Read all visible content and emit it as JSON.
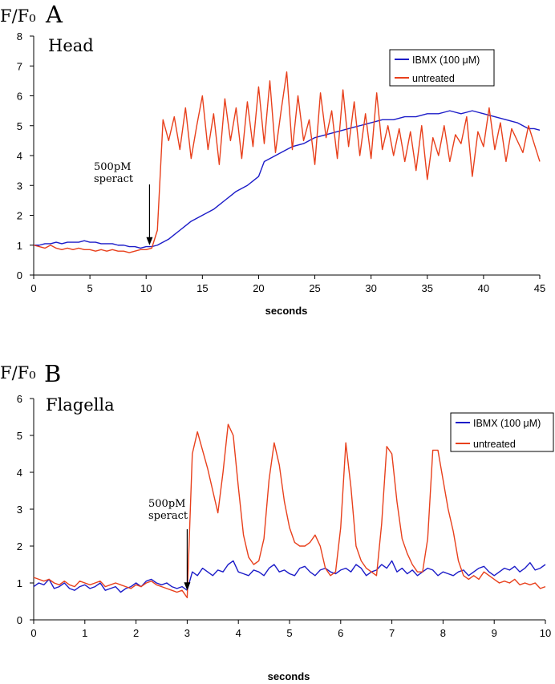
{
  "chart_data": [
    {
      "type": "line",
      "panel": "A",
      "y_label": "F/F₀",
      "region": "Head",
      "x_label": "seconds",
      "annotation": {
        "lines": [
          "500pM",
          "speract"
        ],
        "x": 10.3,
        "y": 1.0
      },
      "legend": "upper right",
      "x": [
        0,
        0.5,
        1,
        1.5,
        2,
        2.5,
        3,
        3.5,
        4,
        4.5,
        5,
        5.5,
        6,
        6.5,
        7,
        7.5,
        8,
        8.5,
        9,
        9.5,
        10,
        10.5,
        11,
        11.5,
        12,
        12.5,
        13,
        13.5,
        14,
        14.5,
        15,
        15.5,
        16,
        16.5,
        17,
        17.5,
        18,
        18.5,
        19,
        19.5,
        20,
        20.5,
        21,
        21.5,
        22,
        22.5,
        23,
        23.5,
        24,
        24.5,
        25,
        25.5,
        26,
        26.5,
        27,
        27.5,
        28,
        28.5,
        29,
        29.5,
        30,
        30.5,
        31,
        31.5,
        32,
        32.5,
        33,
        33.5,
        34,
        34.5,
        35,
        35.5,
        36,
        36.5,
        37,
        37.5,
        38,
        38.5,
        39,
        39.5,
        40,
        40.5,
        41,
        41.5,
        42,
        42.5,
        43,
        43.5,
        44,
        44.5,
        45
      ],
      "series": [
        {
          "name": "IBMX (100 μM)",
          "color": "#1c1cc8",
          "values": [
            1.0,
            1.0,
            1.05,
            1.05,
            1.1,
            1.05,
            1.1,
            1.1,
            1.1,
            1.15,
            1.1,
            1.1,
            1.05,
            1.05,
            1.05,
            1.0,
            1.0,
            0.95,
            0.95,
            0.9,
            0.95,
            0.95,
            1.0,
            1.1,
            1.2,
            1.35,
            1.5,
            1.65,
            1.8,
            1.9,
            2.0,
            2.1,
            2.2,
            2.35,
            2.5,
            2.65,
            2.8,
            2.9,
            3.0,
            3.15,
            3.3,
            3.8,
            3.9,
            4.0,
            4.1,
            4.2,
            4.3,
            4.35,
            4.4,
            4.5,
            4.6,
            4.65,
            4.7,
            4.75,
            4.8,
            4.85,
            4.9,
            4.95,
            5.0,
            5.05,
            5.1,
            5.15,
            5.2,
            5.2,
            5.2,
            5.25,
            5.3,
            5.3,
            5.3,
            5.35,
            5.4,
            5.4,
            5.4,
            5.45,
            5.5,
            5.45,
            5.4,
            5.45,
            5.5,
            5.45,
            5.4,
            5.35,
            5.3,
            5.25,
            5.2,
            5.15,
            5.1,
            5.0,
            4.9,
            4.9,
            4.85
          ]
        },
        {
          "name": "untreated",
          "color": "#e8401c",
          "values": [
            1.0,
            0.95,
            0.9,
            1.0,
            0.9,
            0.85,
            0.9,
            0.85,
            0.9,
            0.85,
            0.85,
            0.8,
            0.85,
            0.8,
            0.85,
            0.8,
            0.8,
            0.75,
            0.8,
            0.85,
            0.85,
            0.9,
            1.5,
            5.2,
            4.5,
            5.3,
            4.2,
            5.6,
            3.9,
            5.0,
            6.0,
            4.2,
            5.4,
            3.7,
            5.9,
            4.5,
            5.6,
            3.9,
            5.8,
            4.3,
            6.3,
            4.4,
            6.5,
            4.1,
            5.5,
            6.8,
            4.2,
            6.0,
            4.5,
            5.2,
            3.7,
            6.1,
            4.6,
            5.5,
            3.9,
            6.2,
            4.3,
            5.8,
            4.0,
            5.4,
            3.9,
            6.1,
            4.2,
            5.0,
            4.0,
            4.9,
            3.8,
            4.8,
            3.5,
            5.0,
            3.2,
            4.6,
            4.0,
            5.0,
            3.8,
            4.7,
            4.4,
            5.3,
            3.3,
            4.8,
            4.3,
            5.6,
            4.2,
            5.1,
            3.8,
            4.9,
            4.5,
            4.1,
            5.0,
            4.4,
            3.8
          ]
        }
      ],
      "xlim": [
        0,
        45
      ],
      "xticks": [
        0,
        5,
        10,
        15,
        20,
        25,
        30,
        35,
        40,
        45
      ],
      "ylim": [
        0,
        8
      ],
      "yticks": [
        0,
        1,
        2,
        3,
        4,
        5,
        6,
        7,
        8
      ]
    },
    {
      "type": "line",
      "panel": "B",
      "y_label": "F/F₀",
      "region": "Flagella",
      "x_label": "seconds",
      "annotation": {
        "lines": [
          "500pM",
          "speract"
        ],
        "x": 3.0,
        "y": 0.8
      },
      "legend": "upper right",
      "x": [
        0,
        0.1,
        0.2,
        0.3,
        0.4,
        0.5,
        0.6,
        0.7,
        0.8,
        0.9,
        1,
        1.1,
        1.2,
        1.3,
        1.4,
        1.5,
        1.6,
        1.7,
        1.8,
        1.9,
        2,
        2.1,
        2.2,
        2.3,
        2.4,
        2.5,
        2.6,
        2.7,
        2.8,
        2.9,
        3,
        3.1,
        3.2,
        3.3,
        3.4,
        3.5,
        3.6,
        3.7,
        3.8,
        3.9,
        4,
        4.1,
        4.2,
        4.3,
        4.4,
        4.5,
        4.6,
        4.7,
        4.8,
        4.9,
        5,
        5.1,
        5.2,
        5.3,
        5.4,
        5.5,
        5.6,
        5.7,
        5.8,
        5.9,
        6,
        6.1,
        6.2,
        6.3,
        6.4,
        6.5,
        6.6,
        6.7,
        6.8,
        6.9,
        7,
        7.1,
        7.2,
        7.3,
        7.4,
        7.5,
        7.6,
        7.7,
        7.8,
        7.9,
        8,
        8.1,
        8.2,
        8.3,
        8.4,
        8.5,
        8.6,
        8.7,
        8.8,
        8.9,
        9,
        9.1,
        9.2,
        9.3,
        9.4,
        9.5,
        9.6,
        9.7,
        9.8,
        9.9,
        10
      ],
      "series": [
        {
          "name": "IBMX (100 μM)",
          "color": "#1c1cc8",
          "values": [
            0.9,
            1.0,
            0.95,
            1.1,
            0.85,
            0.9,
            1.0,
            0.85,
            0.8,
            0.9,
            0.95,
            0.85,
            0.9,
            1.0,
            0.8,
            0.85,
            0.9,
            0.75,
            0.85,
            0.9,
            1.0,
            0.9,
            1.05,
            1.1,
            1.0,
            0.95,
            1.0,
            0.9,
            0.85,
            0.9,
            0.8,
            1.3,
            1.2,
            1.4,
            1.3,
            1.2,
            1.35,
            1.3,
            1.5,
            1.6,
            1.3,
            1.25,
            1.2,
            1.35,
            1.3,
            1.2,
            1.4,
            1.5,
            1.3,
            1.35,
            1.25,
            1.2,
            1.4,
            1.45,
            1.3,
            1.2,
            1.35,
            1.4,
            1.3,
            1.25,
            1.35,
            1.4,
            1.3,
            1.5,
            1.4,
            1.2,
            1.3,
            1.35,
            1.5,
            1.4,
            1.6,
            1.3,
            1.4,
            1.25,
            1.35,
            1.2,
            1.3,
            1.4,
            1.35,
            1.2,
            1.3,
            1.25,
            1.2,
            1.3,
            1.35,
            1.2,
            1.3,
            1.4,
            1.45,
            1.3,
            1.2,
            1.3,
            1.4,
            1.35,
            1.45,
            1.3,
            1.4,
            1.55,
            1.35,
            1.4,
            1.5
          ]
        },
        {
          "name": "untreated",
          "color": "#e8401c",
          "values": [
            1.15,
            1.1,
            1.05,
            1.1,
            1.0,
            0.95,
            1.05,
            0.95,
            0.9,
            1.05,
            1.0,
            0.95,
            1.0,
            1.05,
            0.9,
            0.95,
            1.0,
            0.95,
            0.9,
            0.85,
            0.95,
            0.9,
            1.0,
            1.05,
            0.95,
            0.9,
            0.85,
            0.8,
            0.75,
            0.8,
            0.6,
            4.5,
            5.1,
            4.6,
            4.1,
            3.5,
            2.9,
            4.0,
            5.3,
            5.0,
            3.6,
            2.3,
            1.7,
            1.5,
            1.6,
            2.2,
            3.8,
            4.8,
            4.2,
            3.2,
            2.5,
            2.1,
            2.0,
            2.0,
            2.1,
            2.3,
            2.0,
            1.4,
            1.2,
            1.3,
            2.5,
            4.8,
            3.6,
            2.0,
            1.6,
            1.4,
            1.3,
            1.2,
            2.6,
            4.7,
            4.5,
            3.2,
            2.2,
            1.8,
            1.5,
            1.3,
            1.3,
            2.2,
            4.6,
            4.6,
            3.8,
            3.0,
            2.4,
            1.6,
            1.2,
            1.1,
            1.2,
            1.1,
            1.3,
            1.2,
            1.1,
            1.0,
            1.05,
            1.0,
            1.1,
            0.95,
            1.0,
            0.95,
            1.0,
            0.85,
            0.9
          ]
        }
      ],
      "xlim": [
        0,
        10
      ],
      "xticks": [
        0,
        1,
        2,
        3,
        4,
        5,
        6,
        7,
        8,
        9,
        10
      ],
      "ylim": [
        0,
        6
      ],
      "yticks": [
        0,
        1,
        2,
        3,
        4,
        5,
        6
      ]
    }
  ]
}
